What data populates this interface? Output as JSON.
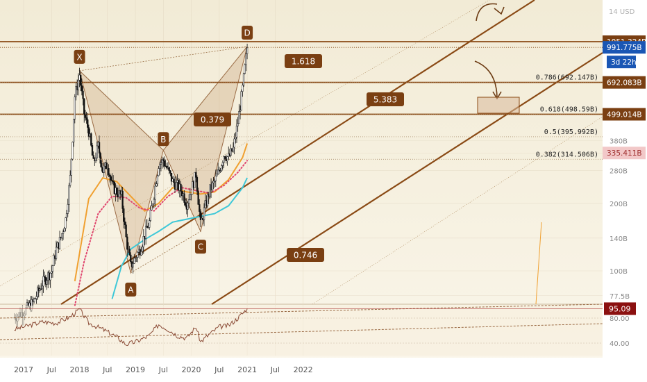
{
  "chart_data": {
    "type": "line",
    "instrument_unit": "14 USD",
    "price_scale": "log",
    "ylim": [
      70,
      1400
    ],
    "x_ticks": [
      "2017",
      "Jul",
      "2018",
      "Jul",
      "2019",
      "Jul",
      "2020",
      "Jul",
      "2021",
      "Jul",
      "2022"
    ],
    "y_ticks": [
      "1051.324B",
      "991.775B",
      "692.083B",
      "499.014B",
      "380B",
      "335.411B",
      "280B",
      "200B",
      "140B",
      "100B",
      "77.5B"
    ],
    "y_tick_values": [
      1051.324,
      991.775,
      692.083,
      499.014,
      380,
      335.411,
      280,
      200,
      140,
      100,
      77.5
    ],
    "price_badges": [
      {
        "label": "1051.324B",
        "value": 1051.324,
        "color": "#7a3f12"
      },
      {
        "label": "991.775B",
        "value": 991.775,
        "color": "#1a56b4"
      },
      {
        "label": "3d 22h",
        "value": 900,
        "color": "#1a56b4"
      },
      {
        "label": "692.083B",
        "value": 692.083,
        "color": "#7a3f12"
      },
      {
        "label": "499.014B",
        "value": 499.014,
        "color": "#7a3f12"
      },
      {
        "label": "335.411B",
        "value": 335.411,
        "color": "#f2c8c8"
      }
    ],
    "horizontal_levels": [
      1051.324,
      692.083,
      499.014
    ],
    "fib_levels": [
      {
        "label": "0.786(692.147B)",
        "value": 692.147
      },
      {
        "label": "0.618(498.59B)",
        "value": 498.59
      },
      {
        "label": "0.5(395.992B)",
        "value": 395.992
      },
      {
        "label": "0.382(314.506B)",
        "value": 314.506
      }
    ],
    "pattern_points": [
      {
        "label": "X",
        "date": "2018-01",
        "value": 780
      },
      {
        "label": "A",
        "date": "2018-12",
        "value": 98
      },
      {
        "label": "B",
        "date": "2019-07",
        "value": 345
      },
      {
        "label": "C",
        "date": "2020-03",
        "value": 150
      },
      {
        "label": "D",
        "date": "2021-01",
        "value": 1000
      }
    ],
    "ratios": [
      {
        "label": "0.379"
      },
      {
        "label": "0.746"
      },
      {
        "label": "5.383"
      },
      {
        "label": "1.618"
      }
    ],
    "price_series": [
      {
        "date": "2016-11",
        "value": 62
      },
      {
        "date": "2017-01",
        "value": 66
      },
      {
        "date": "2017-03",
        "value": 72
      },
      {
        "date": "2017-05",
        "value": 88
      },
      {
        "date": "2017-07",
        "value": 100
      },
      {
        "date": "2017-08",
        "value": 125
      },
      {
        "date": "2017-09",
        "value": 140
      },
      {
        "date": "2017-10",
        "value": 170
      },
      {
        "date": "2017-11",
        "value": 260
      },
      {
        "date": "2017-12",
        "value": 600
      },
      {
        "date": "2018-01",
        "value": 750
      },
      {
        "date": "2018-02",
        "value": 500
      },
      {
        "date": "2018-03",
        "value": 420
      },
      {
        "date": "2018-04",
        "value": 300
      },
      {
        "date": "2018-05",
        "value": 360
      },
      {
        "date": "2018-06",
        "value": 280
      },
      {
        "date": "2018-07",
        "value": 300
      },
      {
        "date": "2018-08",
        "value": 240
      },
      {
        "date": "2018-09",
        "value": 225
      },
      {
        "date": "2018-10",
        "value": 215
      },
      {
        "date": "2018-11",
        "value": 140
      },
      {
        "date": "2018-12",
        "value": 105
      },
      {
        "date": "2019-01",
        "value": 115
      },
      {
        "date": "2019-02",
        "value": 125
      },
      {
        "date": "2019-03",
        "value": 145
      },
      {
        "date": "2019-04",
        "value": 165
      },
      {
        "date": "2019-05",
        "value": 220
      },
      {
        "date": "2019-06",
        "value": 300
      },
      {
        "date": "2019-07",
        "value": 310
      },
      {
        "date": "2019-08",
        "value": 280
      },
      {
        "date": "2019-09",
        "value": 250
      },
      {
        "date": "2019-10",
        "value": 240
      },
      {
        "date": "2019-11",
        "value": 225
      },
      {
        "date": "2019-12",
        "value": 200
      },
      {
        "date": "2020-01",
        "value": 230
      },
      {
        "date": "2020-02",
        "value": 270
      },
      {
        "date": "2020-03",
        "value": 160
      },
      {
        "date": "2020-04",
        "value": 195
      },
      {
        "date": "2020-05",
        "value": 230
      },
      {
        "date": "2020-06",
        "value": 250
      },
      {
        "date": "2020-07",
        "value": 280
      },
      {
        "date": "2020-08",
        "value": 330
      },
      {
        "date": "2020-09",
        "value": 320
      },
      {
        "date": "2020-10",
        "value": 350
      },
      {
        "date": "2020-11",
        "value": 460
      },
      {
        "date": "2020-12",
        "value": 650
      },
      {
        "date": "2021-01",
        "value": 990
      }
    ],
    "moving_averages": [
      {
        "color": "#f0a030",
        "points": [
          {
            "date": "2017-12",
            "value": 90
          },
          {
            "date": "2018-03",
            "value": 210
          },
          {
            "date": "2018-06",
            "value": 260
          },
          {
            "date": "2018-09",
            "value": 250
          },
          {
            "date": "2018-12",
            "value": 215
          },
          {
            "date": "2019-03",
            "value": 185
          },
          {
            "date": "2019-06",
            "value": 200
          },
          {
            "date": "2019-09",
            "value": 235
          },
          {
            "date": "2019-12",
            "value": 225
          },
          {
            "date": "2020-03",
            "value": 220
          },
          {
            "date": "2020-06",
            "value": 225
          },
          {
            "date": "2020-09",
            "value": 255
          },
          {
            "date": "2020-12",
            "value": 320
          },
          {
            "date": "2021-01",
            "value": 370
          }
        ]
      },
      {
        "color": "#3ec8d8",
        "points": [
          {
            "date": "2018-08",
            "value": 75
          },
          {
            "date": "2018-10",
            "value": 105
          },
          {
            "date": "2018-12",
            "value": 125
          },
          {
            "date": "2019-03",
            "value": 138
          },
          {
            "date": "2019-06",
            "value": 150
          },
          {
            "date": "2019-09",
            "value": 165
          },
          {
            "date": "2019-12",
            "value": 170
          },
          {
            "date": "2020-03",
            "value": 175
          },
          {
            "date": "2020-06",
            "value": 180
          },
          {
            "date": "2020-09",
            "value": 195
          },
          {
            "date": "2020-12",
            "value": 235
          },
          {
            "date": "2021-01",
            "value": 260
          }
        ]
      },
      {
        "color": "#e0466e",
        "dotted": true,
        "points": [
          {
            "date": "2017-12",
            "value": 70
          },
          {
            "date": "2018-02",
            "value": 110
          },
          {
            "date": "2018-05",
            "value": 180
          },
          {
            "date": "2018-08",
            "value": 215
          },
          {
            "date": "2018-11",
            "value": 212
          },
          {
            "date": "2019-02",
            "value": 190
          },
          {
            "date": "2019-05",
            "value": 185
          },
          {
            "date": "2019-08",
            "value": 215
          },
          {
            "date": "2019-11",
            "value": 235
          },
          {
            "date": "2020-02",
            "value": 228
          },
          {
            "date": "2020-05",
            "value": 222
          },
          {
            "date": "2020-08",
            "value": 240
          },
          {
            "date": "2020-11",
            "value": 275
          },
          {
            "date": "2021-01",
            "value": 310
          }
        ]
      }
    ],
    "indicator": {
      "y_ticks": [
        "80.00",
        "40.00"
      ],
      "y_tick_values": [
        80,
        40
      ],
      "ylim": [
        20,
        100
      ],
      "badge": "95.09",
      "badge_value": 95.09,
      "series": [
        {
          "date": "2016-11",
          "value": 62
        },
        {
          "date": "2017-02",
          "value": 68
        },
        {
          "date": "2017-05",
          "value": 74
        },
        {
          "date": "2017-08",
          "value": 72
        },
        {
          "date": "2017-11",
          "value": 82
        },
        {
          "date": "2018-01",
          "value": 94
        },
        {
          "date": "2018-03",
          "value": 72
        },
        {
          "date": "2018-06",
          "value": 62
        },
        {
          "date": "2018-09",
          "value": 50
        },
        {
          "date": "2018-11",
          "value": 38
        },
        {
          "date": "2019-01",
          "value": 42
        },
        {
          "date": "2019-04",
          "value": 52
        },
        {
          "date": "2019-06",
          "value": 70
        },
        {
          "date": "2019-08",
          "value": 62
        },
        {
          "date": "2019-10",
          "value": 52
        },
        {
          "date": "2019-12",
          "value": 48
        },
        {
          "date": "2020-02",
          "value": 66
        },
        {
          "date": "2020-03",
          "value": 42
        },
        {
          "date": "2020-05",
          "value": 55
        },
        {
          "date": "2020-07",
          "value": 66
        },
        {
          "date": "2020-09",
          "value": 68
        },
        {
          "date": "2020-11",
          "value": 80
        },
        {
          "date": "2021-01",
          "value": 95
        }
      ]
    }
  }
}
